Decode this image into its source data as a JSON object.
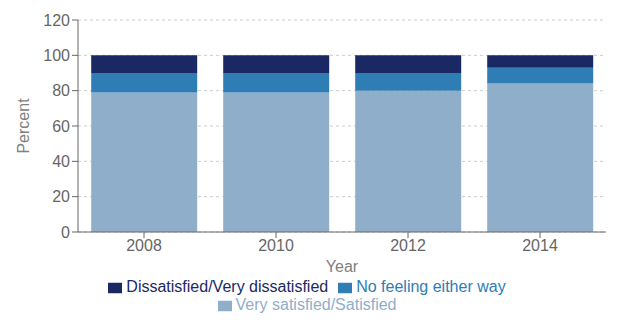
{
  "chart_data": {
    "type": "bar",
    "stacked": true,
    "categories": [
      "2008",
      "2010",
      "2012",
      "2014"
    ],
    "series": [
      {
        "name": "Very satisfied/Satisfied",
        "color": "#8faec9",
        "values": [
          79,
          79,
          80,
          84
        ]
      },
      {
        "name": "No feeling either way",
        "color": "#2e7db5",
        "values": [
          11,
          11,
          10,
          9
        ]
      },
      {
        "name": "Dissatisfied/Very dissatisfied",
        "color": "#1a2864",
        "values": [
          10,
          10,
          10,
          7
        ]
      }
    ],
    "xlabel": "Year",
    "ylabel": "Percent",
    "ylim": [
      0,
      120
    ],
    "yticks": [
      0,
      20,
      40,
      60,
      80,
      100,
      120
    ],
    "grid": true,
    "legend": "bottom"
  }
}
